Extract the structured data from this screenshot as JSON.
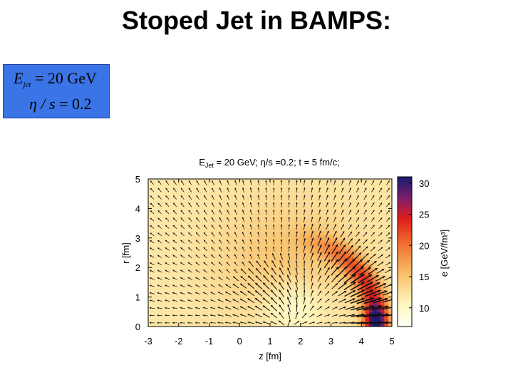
{
  "slide": {
    "title": "Stoped Jet in BAMPS:"
  },
  "param_box": {
    "ejet_symbol": "E",
    "ejet_sub": "jet",
    "ejet_value": "= 20 GeV",
    "eta_symbol": "η / s",
    "eta_value": "= 0.2"
  },
  "colors": {
    "box_bg": "#3b74e6",
    "hot": "#1a1a6e",
    "mid": "#e8301a",
    "warm": "#f7a84a",
    "cool": "#fff7d0"
  },
  "chart_data": {
    "type": "heatmap",
    "title": "E_Jet = 20 GeV; η/s =0.2; t = 5 fm/c;",
    "title_parts": {
      "e": "E",
      "sub": "Jet",
      "rest": " = 20 GeV; η/s =0.2; t = 5 fm/c;"
    },
    "xlabel": "z [fm]",
    "ylabel": "r [fm]",
    "colorbar_label": "e [GeV/fm³]",
    "xlim": [
      -3,
      5
    ],
    "ylim": [
      0,
      5
    ],
    "zlim": [
      7,
      31
    ],
    "x_ticks": [
      "-3",
      "-2",
      "-1",
      "0",
      "1",
      "2",
      "3",
      "4",
      "5"
    ],
    "y_ticks": [
      "0",
      "1",
      "2",
      "3",
      "4",
      "5"
    ],
    "colorbar_ticks": [
      "10",
      "15",
      "20",
      "25",
      "30"
    ],
    "background_energy_density": 12,
    "shock_front": {
      "center_z": 1.5,
      "center_r": 0,
      "radius": 3.05,
      "width": 0.45,
      "peak": 29,
      "peak_z": 4.4,
      "peak_r": 0.2
    },
    "arrow_field": "flow velocity vectors, largest along shock front near z=3.5–4.5, r=0–2"
  }
}
